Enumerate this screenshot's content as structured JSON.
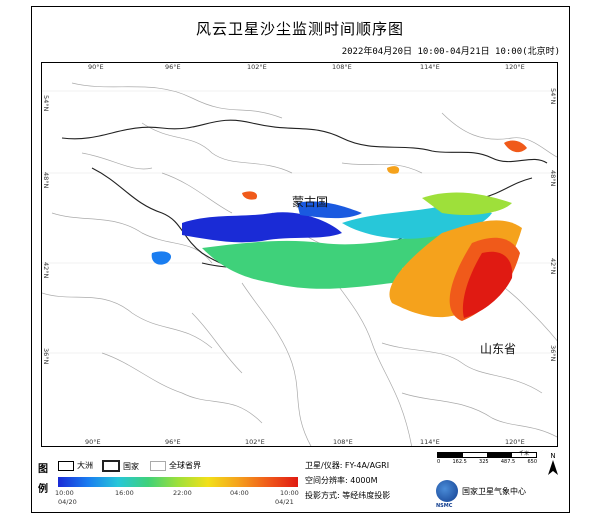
{
  "title": "风云卫星沙尘监测时间顺序图",
  "time_span": "2022年04月20日 10:00-04月21日 10:00(北京时)",
  "map": {
    "lon_ticks": [
      "90°E",
      "96°E",
      "102°E",
      "108°E",
      "114°E",
      "120°E"
    ],
    "lat_ticks": [
      "54°N",
      "48°N",
      "42°N",
      "36°N"
    ],
    "places": {
      "mongolia": "蒙古国",
      "shandong": "山东省"
    },
    "colors": {
      "early": "#1a2bd6",
      "mid": "#3fd17a",
      "late": "#e01a12",
      "border": "#aaaaaa",
      "country": "#222222"
    }
  },
  "legend": {
    "char_top": "图",
    "char_bottom": "例",
    "items": [
      {
        "label": "大洲"
      },
      {
        "label": "国家"
      },
      {
        "label": "全球省界"
      }
    ],
    "colorbar_labels": [
      "10:00",
      "16:00",
      "22:00",
      "04:00",
      "10:00"
    ],
    "colorbar_dates": {
      "start": "04/20",
      "end": "04/21"
    }
  },
  "info": {
    "satellite": "卫星/仪器: FY-4A/AGRI",
    "resolution": "空间分辨率: 4000M",
    "projection": "投影方式:  等经纬度投影"
  },
  "scale": {
    "labels": [
      "0",
      "162.5",
      "325",
      "487.5",
      "650"
    ],
    "unit": "千米",
    "north": "N"
  },
  "org": "国家卫星气象中心",
  "org_abbr": "NSMC"
}
